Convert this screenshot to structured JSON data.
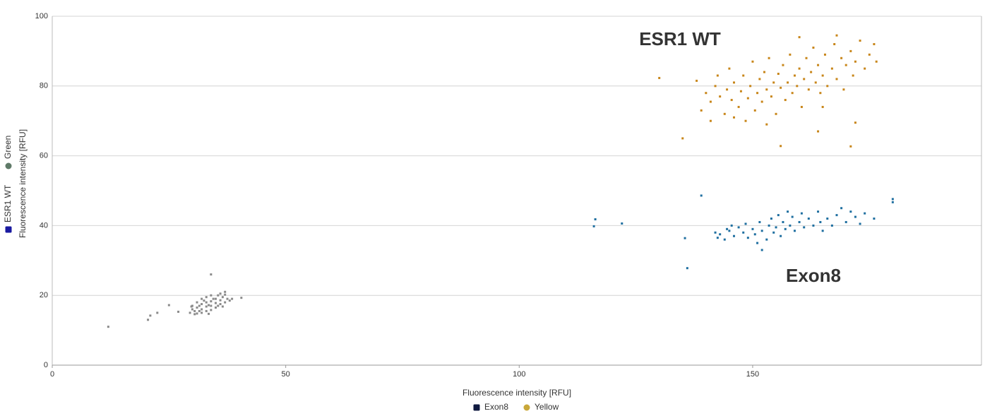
{
  "chart_data": {
    "type": "scatter",
    "xlabel": "Fluorescence intensity [RFU]",
    "ylabel": "Fluorescence intensity [RFU]",
    "xlim": [
      0,
      199
    ],
    "ylim": [
      0,
      100
    ],
    "xticks": [
      0,
      50,
      100,
      150
    ],
    "yticks": [
      0,
      20,
      40,
      60,
      80,
      100
    ],
    "grid": true,
    "y_legend": [
      {
        "label": "ESR1 WT",
        "color": "#1a1aa0",
        "shape": "square"
      },
      {
        "label": "Green",
        "color": "#5f7a68",
        "shape": "circle"
      }
    ],
    "legend": [
      {
        "label": "Exon8",
        "color": "#101a40",
        "shape": "square"
      },
      {
        "label": "Yellow",
        "color": "#c9a83a",
        "shape": "circle"
      }
    ],
    "annotations": [
      {
        "text": "ESR1 WT",
        "color": "#a8781e"
      },
      {
        "text": "Exon8",
        "color": "#1d6f85"
      }
    ],
    "series": [
      {
        "color": "#8a8a8a",
        "x": [
          29.5,
          30,
          30,
          30.5,
          31,
          31,
          31,
          31.5,
          32,
          32,
          32,
          32,
          32.5,
          33,
          33,
          33,
          33,
          33.5,
          34,
          34,
          34,
          34,
          34.5,
          35,
          35,
          35,
          35.5,
          36,
          36,
          36.5,
          37,
          37,
          37.5,
          38,
          30.5,
          31.5,
          33.5,
          35.5,
          29.8,
          36.5,
          12,
          20.5,
          21,
          22.5,
          25,
          27,
          34,
          40.5,
          38.5,
          37,
          36
        ],
        "y": [
          15,
          16,
          17,
          15.5,
          14.8,
          16.5,
          18,
          17,
          15,
          16,
          17.5,
          19,
          18.5,
          15.5,
          16.8,
          18,
          19.5,
          17.2,
          15.8,
          17,
          18.3,
          20,
          19,
          16.5,
          17.8,
          19,
          20,
          17.5,
          18.6,
          19.5,
          18,
          20.2,
          19,
          18.5,
          14.6,
          15.5,
          14.7,
          17,
          16.8,
          16.8,
          11,
          13,
          14.2,
          15,
          17.2,
          15.3,
          26,
          19.3,
          19,
          21,
          20.5
        ]
      },
      {
        "color": "#1f6fa0",
        "x": [
          142,
          142.5,
          143,
          144,
          144.5,
          145,
          145.5,
          146,
          147,
          148,
          148.5,
          149,
          150,
          150.5,
          151,
          151.5,
          152,
          152,
          153,
          153.5,
          154,
          154.5,
          155,
          155.5,
          156,
          156.5,
          157,
          157.5,
          158,
          158.5,
          159,
          160,
          160.5,
          161,
          162,
          163,
          164,
          164.5,
          165,
          166,
          167,
          168,
          169,
          170,
          171,
          172,
          173,
          174,
          116,
          116.3,
          122,
          135.5,
          136,
          139,
          180,
          180,
          176
        ],
        "y": [
          38,
          36.5,
          37.5,
          36,
          39,
          38.5,
          40,
          37,
          39.5,
          38,
          40.5,
          36.5,
          39,
          37.5,
          35,
          41,
          33,
          38.5,
          36,
          40,
          42,
          38,
          39.5,
          43,
          37,
          41,
          39,
          44,
          40,
          42.5,
          38.5,
          41,
          43.5,
          39.5,
          42,
          40,
          44,
          41,
          38.5,
          42,
          40,
          43,
          45,
          41,
          44,
          42.5,
          40.5,
          43.5,
          39.8,
          41.8,
          40.6,
          36.4,
          27.8,
          48.6,
          46.7,
          47.6,
          42
        ]
      },
      {
        "color": "#c8861a",
        "x": [
          138,
          139,
          140,
          141,
          142,
          142.5,
          143,
          144,
          144.5,
          145,
          145.5,
          146,
          147,
          147.5,
          148,
          148.5,
          149,
          149.5,
          150,
          150.5,
          151,
          151.5,
          152,
          152.5,
          153,
          153.5,
          154,
          154.5,
          155,
          155.5,
          156,
          156.5,
          157,
          157.5,
          158,
          158.5,
          159,
          159.5,
          160,
          160.5,
          161,
          161.5,
          162,
          162.5,
          163,
          163.5,
          164,
          164.5,
          165,
          165.5,
          166,
          167,
          167.5,
          168,
          169,
          169.5,
          170,
          171,
          171.5,
          172,
          173,
          174,
          175,
          176,
          176.5,
          168,
          160,
          165,
          153,
          146,
          130,
          135,
          156,
          171,
          164,
          141,
          172
        ],
        "y": [
          81.5,
          73,
          78,
          75.5,
          80,
          83,
          77,
          72,
          79,
          85,
          76,
          81,
          74,
          78.5,
          83,
          70,
          76.5,
          80,
          87,
          73,
          78,
          82,
          75.5,
          84,
          79,
          88,
          77,
          81,
          72,
          83.5,
          79.5,
          86,
          76,
          81,
          89,
          78,
          83,
          80,
          85,
          74,
          82,
          88,
          79,
          84,
          91,
          81,
          86,
          78,
          83,
          89,
          80,
          85,
          92,
          82,
          88,
          79,
          86,
          90,
          83,
          87,
          93,
          85,
          89,
          92,
          87,
          94.5,
          94,
          74,
          69,
          71,
          82.3,
          65,
          62.8,
          62.7,
          67,
          70,
          69.5
        ]
      }
    ]
  }
}
